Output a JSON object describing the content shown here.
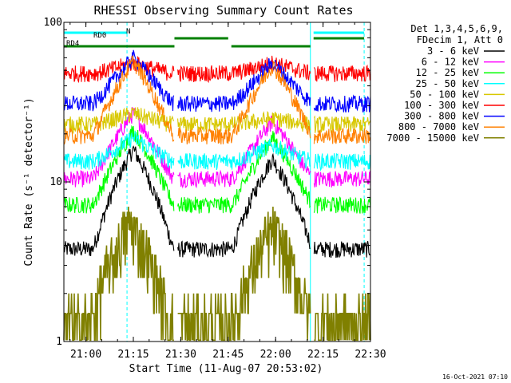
{
  "chart_data": {
    "type": "line",
    "title": "RHESSI Observing Summary Count Rates",
    "xlabel": "Start Time (11-Aug-07 20:53:02)",
    "ylabel": "Count Rate (s⁻¹ detector⁻¹)",
    "y_scale": "log",
    "ylim": [
      1,
      100
    ],
    "xlim": [
      "20:53:02",
      "22:30:00"
    ],
    "x_ticks": [
      "21:00",
      "21:15",
      "21:30",
      "21:45",
      "22:00",
      "22:15",
      "22:30"
    ],
    "y_ticks": [
      "1",
      "10",
      "100"
    ],
    "legend_header": [
      "Det 1,3,4,5,6,9,",
      "FDecim 1, Att 0"
    ],
    "legend_position": "right",
    "series": [
      {
        "name": "3 - 6 keV",
        "color": "#000000",
        "baseline": 3.8,
        "peaks": [
          {
            "center": "21:15",
            "peak": 16
          },
          {
            "center": "21:59",
            "peak": 14
          }
        ]
      },
      {
        "name": "6 - 12 keV",
        "color": "#ff00ff",
        "baseline": 10.5,
        "peaks": [
          {
            "center": "21:15",
            "peak": 27
          },
          {
            "center": "21:59",
            "peak": 24
          }
        ]
      },
      {
        "name": "12 - 25 keV",
        "color": "#00ff00",
        "baseline": 7.2,
        "peaks": [
          {
            "center": "21:15",
            "peak": 21
          },
          {
            "center": "21:59",
            "peak": 19
          }
        ]
      },
      {
        "name": "25 - 50 keV",
        "color": "#00ffff",
        "baseline": 13.5,
        "peaks": [
          {
            "center": "21:15",
            "peak": 19
          },
          {
            "center": "21:59",
            "peak": 17
          }
        ]
      },
      {
        "name": "50 - 100 keV",
        "color": "#d8c800",
        "baseline": 23,
        "peaks": [
          {
            "center": "21:15",
            "peak": 27
          },
          {
            "center": "21:59",
            "peak": 25
          }
        ]
      },
      {
        "name": "100 - 300 keV",
        "color": "#ff0000",
        "baseline": 48,
        "peaks": [
          {
            "center": "21:15",
            "peak": 56
          },
          {
            "center": "21:59",
            "peak": 56
          }
        ]
      },
      {
        "name": "300 - 800 keV",
        "color": "#0000ff",
        "baseline": 31,
        "peaks": [
          {
            "center": "21:15",
            "peak": 60
          },
          {
            "center": "21:59",
            "peak": 56
          }
        ]
      },
      {
        "name": "800 - 7000 keV",
        "color": "#ff8000",
        "baseline": 19.5,
        "peaks": [
          {
            "center": "21:15",
            "peak": 57
          },
          {
            "center": "21:59",
            "peak": 54
          }
        ]
      },
      {
        "name": "7000 - 15000 keV",
        "color": "#808000",
        "baseline": 1.3,
        "peaks": [
          {
            "center": "21:14",
            "peak": 5.5
          },
          {
            "center": "21:59",
            "peak": 5
          }
        ]
      }
    ],
    "flag_bars": [
      {
        "label": "N",
        "color": "#00ffff",
        "segments": [
          [
            "20:53:02",
            "21:13"
          ],
          [
            "22:12",
            "22:28"
          ]
        ]
      },
      {
        "label": "RD0",
        "color": "#008000",
        "segments": [
          [
            "21:28",
            "21:45"
          ],
          [
            "22:12",
            "22:28"
          ]
        ]
      },
      {
        "label": "RD4",
        "color": "#008000",
        "segments": [
          [
            "20:53:02",
            "21:28"
          ],
          [
            "21:46",
            "22:11"
          ]
        ]
      }
    ],
    "vlines_solid": [
      "20:53:02",
      "22:11"
    ],
    "vlines_dashed": [
      "21:13",
      "22:28"
    ],
    "grid": false
  },
  "footer": {
    "timestamp": "16-Oct-2021 07:10"
  }
}
